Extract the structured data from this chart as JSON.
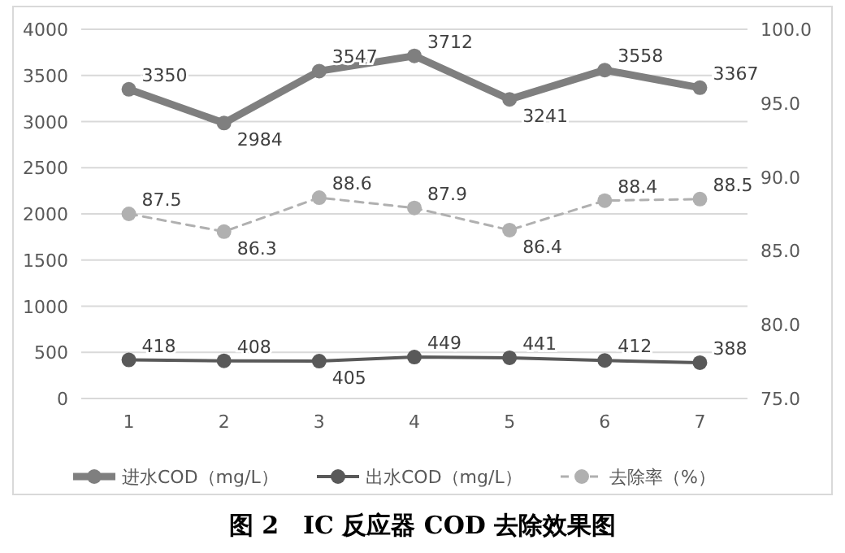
{
  "chart_data": {
    "type": "line",
    "title": "图 2　IC 反应器 COD 去除效果图",
    "categories": [
      "1",
      "2",
      "3",
      "4",
      "5",
      "6",
      "7"
    ],
    "series": [
      {
        "name": "进水COD（mg/L）",
        "color": "#7f7f7f",
        "values": [
          3350,
          2984,
          3547,
          3712,
          3241,
          3558,
          3367
        ]
      },
      {
        "name": "出水COD（mg/L）",
        "color": "#595959",
        "values": [
          418,
          408,
          405,
          449,
          441,
          412,
          388
        ]
      },
      {
        "name": "去除率（%）",
        "color": "#b0b0b0",
        "axis": "y2",
        "line_style": "dashed",
        "values": [
          87.5,
          86.3,
          88.6,
          87.9,
          86.4,
          88.4,
          88.5
        ]
      }
    ],
    "ylim": [
      0,
      4000
    ],
    "yticks": [
      0,
      500,
      1000,
      1500,
      2000,
      2500,
      3000,
      3500,
      4000
    ],
    "y2lim": [
      75,
      100
    ],
    "y2ticks": [
      {
        "value": 75,
        "label": "75.0"
      },
      {
        "value": 80,
        "label": "80.0"
      },
      {
        "value": 85,
        "label": "85.0"
      },
      {
        "value": 90,
        "label": "90.0"
      },
      {
        "value": 95,
        "label": "95.0"
      },
      {
        "value": 100,
        "label": "100.0"
      }
    ],
    "grid": "y",
    "legend": "bottom",
    "marker": "circle",
    "line_style": "solid",
    "data_labels": true
  }
}
